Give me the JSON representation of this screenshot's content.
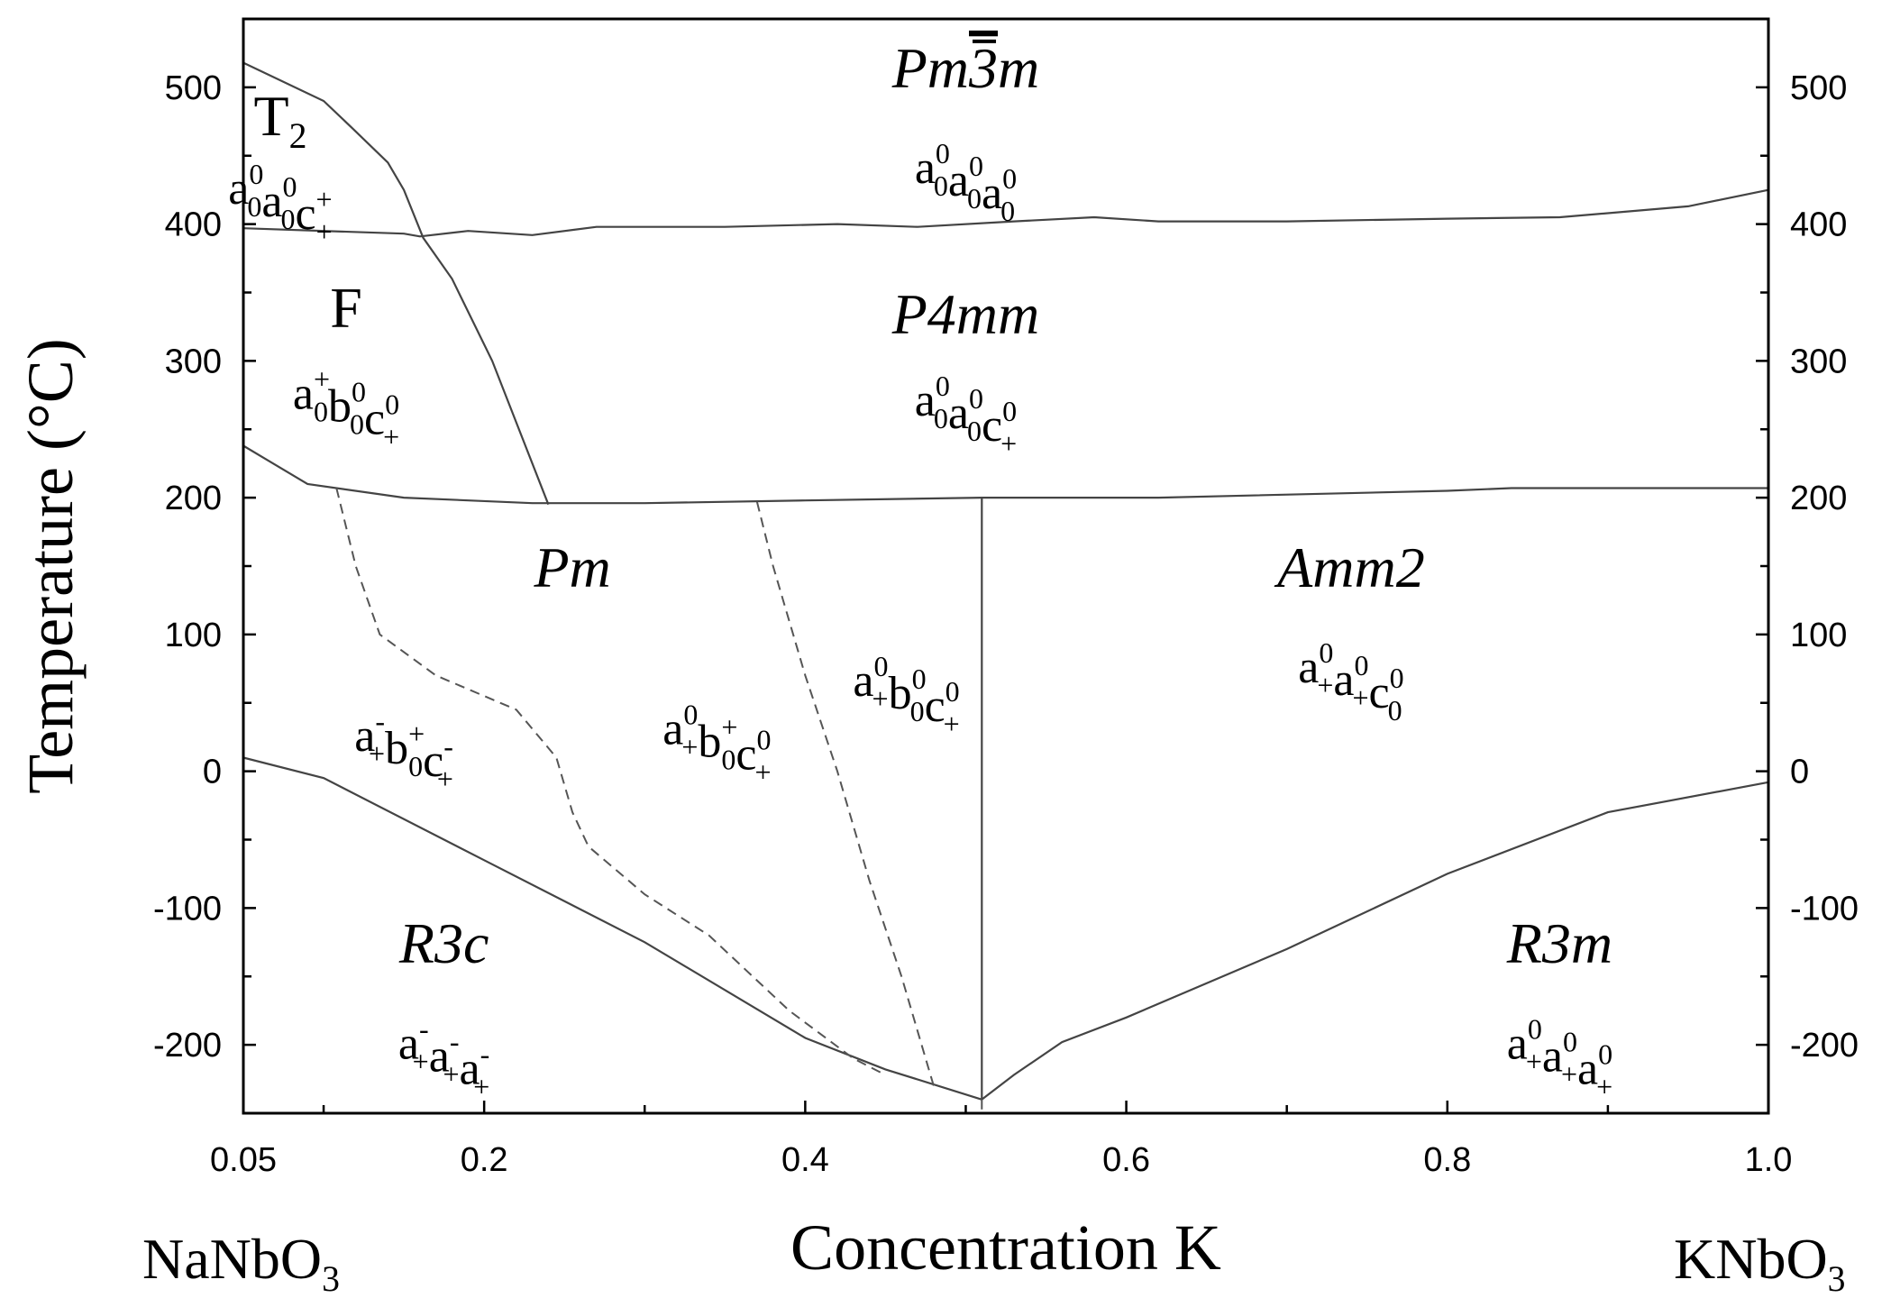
{
  "chart_data": {
    "type": "line",
    "title": "",
    "xlabel": "Concentration K",
    "ylabel": "Temperature (°C)",
    "xlim": [
      0.05,
      1.0
    ],
    "ylim": [
      -250,
      550
    ],
    "x_ticks": [
      0.05,
      0.2,
      0.4,
      0.6,
      0.8,
      1.0
    ],
    "x_tick_labels": [
      "0.05",
      "0.2",
      "0.4",
      "0.6",
      "0.8",
      "1.0"
    ],
    "x_minor_ticks": [
      0.1,
      0.3,
      0.5,
      0.7,
      0.9
    ],
    "y_ticks": [
      500,
      400,
      300,
      200,
      100,
      0,
      -100,
      -200
    ],
    "y_tick_labels": [
      "500",
      "400",
      "300",
      "200",
      "100",
      "0",
      "-100",
      "-200"
    ],
    "y_minor_ticks": [
      550,
      450,
      350,
      250,
      150,
      50,
      -50,
      -150
    ],
    "left_end_label": {
      "base": "NaNbO",
      "sub": "3"
    },
    "right_end_label": {
      "base": "KNbO",
      "sub": "3"
    },
    "boundaries": [
      {
        "style": "solid",
        "points": [
          [
            0.05,
            397
          ],
          [
            0.15,
            393
          ],
          [
            0.16,
            391
          ],
          [
            0.19,
            395
          ],
          [
            0.23,
            392
          ],
          [
            0.27,
            398
          ],
          [
            0.35,
            398
          ],
          [
            0.42,
            400
          ],
          [
            0.47,
            398
          ],
          [
            0.53,
            402
          ],
          [
            0.58,
            405
          ],
          [
            0.62,
            402
          ],
          [
            0.7,
            402
          ],
          [
            0.8,
            404
          ],
          [
            0.87,
            405
          ],
          [
            0.95,
            413
          ],
          [
            1.0,
            425
          ]
        ]
      },
      {
        "style": "solid",
        "points": [
          [
            0.05,
            518
          ],
          [
            0.1,
            490
          ],
          [
            0.118,
            470
          ],
          [
            0.14,
            445
          ],
          [
            0.15,
            425
          ],
          [
            0.162,
            390
          ],
          [
            0.18,
            360
          ],
          [
            0.205,
            300
          ],
          [
            0.24,
            195
          ]
        ]
      },
      {
        "style": "solid",
        "points": [
          [
            0.05,
            238
          ],
          [
            0.09,
            210
          ],
          [
            0.15,
            200
          ],
          [
            0.23,
            196
          ],
          [
            0.3,
            196
          ],
          [
            0.4,
            198
          ],
          [
            0.51,
            200
          ],
          [
            0.62,
            200
          ],
          [
            0.8,
            205
          ],
          [
            0.84,
            207
          ],
          [
            1.0,
            207
          ]
        ]
      },
      {
        "style": "solid",
        "points": [
          [
            0.51,
            200
          ],
          [
            0.51,
            -240
          ]
        ]
      },
      {
        "style": "solid",
        "points": [
          [
            0.05,
            10
          ],
          [
            0.1,
            -5
          ],
          [
            0.2,
            -65
          ],
          [
            0.3,
            -125
          ],
          [
            0.4,
            -195
          ],
          [
            0.45,
            -218
          ],
          [
            0.51,
            -240
          ]
        ]
      },
      {
        "style": "solid",
        "points": [
          [
            0.51,
            -240
          ],
          [
            0.53,
            -222
          ],
          [
            0.56,
            -198
          ],
          [
            0.6,
            -180
          ],
          [
            0.7,
            -130
          ],
          [
            0.8,
            -75
          ],
          [
            0.9,
            -30
          ],
          [
            1.0,
            -8
          ]
        ]
      },
      {
        "style": "dashed",
        "points": [
          [
            0.51,
            -240
          ],
          [
            0.51,
            -250
          ]
        ]
      },
      {
        "style": "dashed",
        "points": [
          [
            0.108,
            207
          ],
          [
            0.12,
            150
          ],
          [
            0.135,
            100
          ],
          [
            0.17,
            70
          ],
          [
            0.22,
            45
          ],
          [
            0.245,
            10
          ],
          [
            0.255,
            -30
          ],
          [
            0.265,
            -55
          ],
          [
            0.3,
            -90
          ],
          [
            0.34,
            -120
          ],
          [
            0.39,
            -175
          ],
          [
            0.43,
            -210
          ],
          [
            0.45,
            -222
          ]
        ]
      },
      {
        "style": "dashed",
        "points": [
          [
            0.37,
            197
          ],
          [
            0.38,
            150
          ],
          [
            0.4,
            70
          ],
          [
            0.42,
            0
          ],
          [
            0.44,
            -80
          ],
          [
            0.46,
            -150
          ],
          [
            0.48,
            -230
          ]
        ]
      }
    ],
    "phase_labels": [
      {
        "name": "T",
        "name_sub": "2",
        "italic": false,
        "x": 0.073,
        "y": 465,
        "tilt": [
          [
            "a",
            "0",
            "0"
          ],
          [
            "a",
            "0",
            "0"
          ],
          [
            "c",
            "+",
            "+"
          ]
        ],
        "tilt_y": 415
      },
      {
        "name": "F",
        "italic": false,
        "x": 0.114,
        "y": 325,
        "tilt": [
          [
            "a",
            "0",
            "+"
          ],
          [
            "b",
            "0",
            "0"
          ],
          [
            "c",
            "+",
            "0"
          ]
        ],
        "tilt_y": 265
      },
      {
        "name": "Pm3m",
        "italic": true,
        "bar_over": "3",
        "x": 0.5,
        "y": 500,
        "tilt": [
          [
            "a",
            "0",
            "0"
          ],
          [
            "a",
            "0",
            "0"
          ],
          [
            "a",
            "0",
            "0"
          ]
        ],
        "tilt_y": 430
      },
      {
        "name": "P4mm",
        "italic": true,
        "x": 0.5,
        "y": 320,
        "tilt": [
          [
            "a",
            "0",
            "0"
          ],
          [
            "a",
            "0",
            "0"
          ],
          [
            "c",
            "+",
            "0"
          ]
        ],
        "tilt_y": 260
      },
      {
        "name": "Pm",
        "italic": true,
        "x": 0.255,
        "y": 135,
        "tilt": [],
        "tilt_y": 0
      },
      {
        "name": "",
        "italic": false,
        "x": 0.0,
        "y": 0,
        "tilt": [
          [
            "a",
            "+",
            "-"
          ],
          [
            "b",
            "0",
            "+"
          ],
          [
            "c",
            "+",
            "-"
          ]
        ],
        "tilt_y": 15,
        "tilt_x": 0.15
      },
      {
        "name": "",
        "italic": false,
        "x": 0.0,
        "y": 0,
        "tilt": [
          [
            "a",
            "+",
            "0"
          ],
          [
            "b",
            "0",
            "+"
          ],
          [
            "c",
            "+",
            "0"
          ]
        ],
        "tilt_y": 20,
        "tilt_x": 0.345
      },
      {
        "name": "",
        "italic": false,
        "x": 0.0,
        "y": 0,
        "tilt": [
          [
            "a",
            "+",
            "0"
          ],
          [
            "b",
            "0",
            "0"
          ],
          [
            "c",
            "+",
            "0"
          ]
        ],
        "tilt_y": 55,
        "tilt_x": 0.463
      },
      {
        "name": "Amm2",
        "italic": true,
        "x": 0.74,
        "y": 135,
        "tilt": [
          [
            "a",
            "+",
            "0"
          ],
          [
            "a",
            "+",
            "0"
          ],
          [
            "c",
            "0",
            "0"
          ]
        ],
        "tilt_y": 65
      },
      {
        "name": "R3c",
        "italic": true,
        "x": 0.175,
        "y": -140,
        "tilt": [
          [
            "a",
            "+",
            "-"
          ],
          [
            "a",
            "+",
            "-"
          ],
          [
            "a",
            "+",
            "-"
          ]
        ],
        "tilt_y": -210
      },
      {
        "name": "R3m",
        "italic": true,
        "x": 0.87,
        "y": -140,
        "tilt": [
          [
            "a",
            "+",
            "0"
          ],
          [
            "a",
            "+",
            "0"
          ],
          [
            "a",
            "+",
            "0"
          ]
        ],
        "tilt_y": -210
      }
    ]
  }
}
